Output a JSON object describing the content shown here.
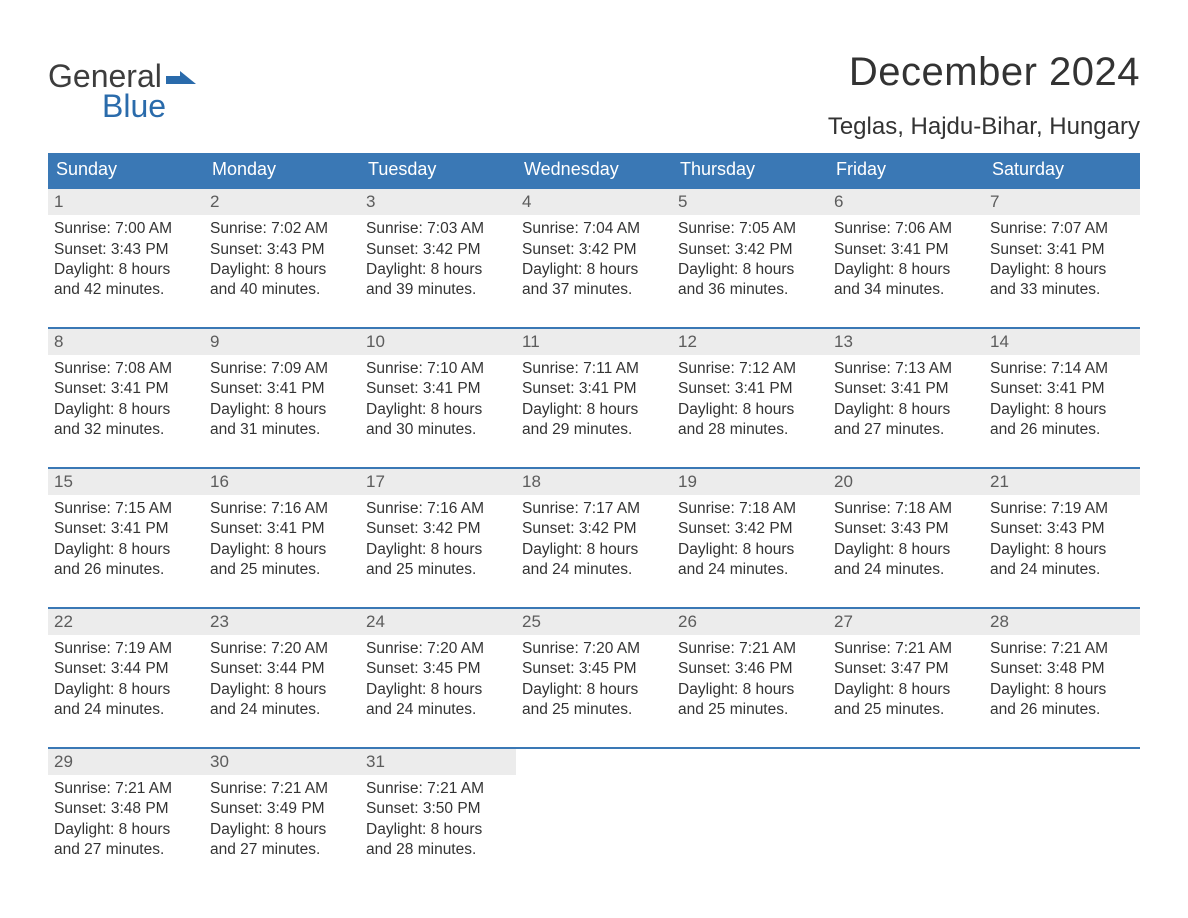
{
  "logo": {
    "word1": "General",
    "word2": "Blue"
  },
  "title": "December 2024",
  "location": "Teglas, Hajdu-Bihar, Hungary",
  "colors": {
    "header_bg": "#3a78b5",
    "header_text": "#ffffff",
    "daynum_bg": "#ececec",
    "daynum_text": "#5c5c5c",
    "body_text": "#333333",
    "logo_gray": "#3d3d3d",
    "logo_blue": "#2a6bab",
    "week_divider": "#3a78b5",
    "background": "#ffffff"
  },
  "day_headers": [
    "Sunday",
    "Monday",
    "Tuesday",
    "Wednesday",
    "Thursday",
    "Friday",
    "Saturday"
  ],
  "weeks": [
    [
      {
        "n": "1",
        "sunrise": "7:00 AM",
        "sunset": "3:43 PM",
        "dl1": "Daylight: 8 hours",
        "dl2": "and 42 minutes."
      },
      {
        "n": "2",
        "sunrise": "7:02 AM",
        "sunset": "3:43 PM",
        "dl1": "Daylight: 8 hours",
        "dl2": "and 40 minutes."
      },
      {
        "n": "3",
        "sunrise": "7:03 AM",
        "sunset": "3:42 PM",
        "dl1": "Daylight: 8 hours",
        "dl2": "and 39 minutes."
      },
      {
        "n": "4",
        "sunrise": "7:04 AM",
        "sunset": "3:42 PM",
        "dl1": "Daylight: 8 hours",
        "dl2": "and 37 minutes."
      },
      {
        "n": "5",
        "sunrise": "7:05 AM",
        "sunset": "3:42 PM",
        "dl1": "Daylight: 8 hours",
        "dl2": "and 36 minutes."
      },
      {
        "n": "6",
        "sunrise": "7:06 AM",
        "sunset": "3:41 PM",
        "dl1": "Daylight: 8 hours",
        "dl2": "and 34 minutes."
      },
      {
        "n": "7",
        "sunrise": "7:07 AM",
        "sunset": "3:41 PM",
        "dl1": "Daylight: 8 hours",
        "dl2": "and 33 minutes."
      }
    ],
    [
      {
        "n": "8",
        "sunrise": "7:08 AM",
        "sunset": "3:41 PM",
        "dl1": "Daylight: 8 hours",
        "dl2": "and 32 minutes."
      },
      {
        "n": "9",
        "sunrise": "7:09 AM",
        "sunset": "3:41 PM",
        "dl1": "Daylight: 8 hours",
        "dl2": "and 31 minutes."
      },
      {
        "n": "10",
        "sunrise": "7:10 AM",
        "sunset": "3:41 PM",
        "dl1": "Daylight: 8 hours",
        "dl2": "and 30 minutes."
      },
      {
        "n": "11",
        "sunrise": "7:11 AM",
        "sunset": "3:41 PM",
        "dl1": "Daylight: 8 hours",
        "dl2": "and 29 minutes."
      },
      {
        "n": "12",
        "sunrise": "7:12 AM",
        "sunset": "3:41 PM",
        "dl1": "Daylight: 8 hours",
        "dl2": "and 28 minutes."
      },
      {
        "n": "13",
        "sunrise": "7:13 AM",
        "sunset": "3:41 PM",
        "dl1": "Daylight: 8 hours",
        "dl2": "and 27 minutes."
      },
      {
        "n": "14",
        "sunrise": "7:14 AM",
        "sunset": "3:41 PM",
        "dl1": "Daylight: 8 hours",
        "dl2": "and 26 minutes."
      }
    ],
    [
      {
        "n": "15",
        "sunrise": "7:15 AM",
        "sunset": "3:41 PM",
        "dl1": "Daylight: 8 hours",
        "dl2": "and 26 minutes."
      },
      {
        "n": "16",
        "sunrise": "7:16 AM",
        "sunset": "3:41 PM",
        "dl1": "Daylight: 8 hours",
        "dl2": "and 25 minutes."
      },
      {
        "n": "17",
        "sunrise": "7:16 AM",
        "sunset": "3:42 PM",
        "dl1": "Daylight: 8 hours",
        "dl2": "and 25 minutes."
      },
      {
        "n": "18",
        "sunrise": "7:17 AM",
        "sunset": "3:42 PM",
        "dl1": "Daylight: 8 hours",
        "dl2": "and 24 minutes."
      },
      {
        "n": "19",
        "sunrise": "7:18 AM",
        "sunset": "3:42 PM",
        "dl1": "Daylight: 8 hours",
        "dl2": "and 24 minutes."
      },
      {
        "n": "20",
        "sunrise": "7:18 AM",
        "sunset": "3:43 PM",
        "dl1": "Daylight: 8 hours",
        "dl2": "and 24 minutes."
      },
      {
        "n": "21",
        "sunrise": "7:19 AM",
        "sunset": "3:43 PM",
        "dl1": "Daylight: 8 hours",
        "dl2": "and 24 minutes."
      }
    ],
    [
      {
        "n": "22",
        "sunrise": "7:19 AM",
        "sunset": "3:44 PM",
        "dl1": "Daylight: 8 hours",
        "dl2": "and 24 minutes."
      },
      {
        "n": "23",
        "sunrise": "7:20 AM",
        "sunset": "3:44 PM",
        "dl1": "Daylight: 8 hours",
        "dl2": "and 24 minutes."
      },
      {
        "n": "24",
        "sunrise": "7:20 AM",
        "sunset": "3:45 PM",
        "dl1": "Daylight: 8 hours",
        "dl2": "and 24 minutes."
      },
      {
        "n": "25",
        "sunrise": "7:20 AM",
        "sunset": "3:45 PM",
        "dl1": "Daylight: 8 hours",
        "dl2": "and 25 minutes."
      },
      {
        "n": "26",
        "sunrise": "7:21 AM",
        "sunset": "3:46 PM",
        "dl1": "Daylight: 8 hours",
        "dl2": "and 25 minutes."
      },
      {
        "n": "27",
        "sunrise": "7:21 AM",
        "sunset": "3:47 PM",
        "dl1": "Daylight: 8 hours",
        "dl2": "and 25 minutes."
      },
      {
        "n": "28",
        "sunrise": "7:21 AM",
        "sunset": "3:48 PM",
        "dl1": "Daylight: 8 hours",
        "dl2": "and 26 minutes."
      }
    ],
    [
      {
        "n": "29",
        "sunrise": "7:21 AM",
        "sunset": "3:48 PM",
        "dl1": "Daylight: 8 hours",
        "dl2": "and 27 minutes."
      },
      {
        "n": "30",
        "sunrise": "7:21 AM",
        "sunset": "3:49 PM",
        "dl1": "Daylight: 8 hours",
        "dl2": "and 27 minutes."
      },
      {
        "n": "31",
        "sunrise": "7:21 AM",
        "sunset": "3:50 PM",
        "dl1": "Daylight: 8 hours",
        "dl2": "and 28 minutes."
      },
      {
        "empty": true
      },
      {
        "empty": true
      },
      {
        "empty": true
      },
      {
        "empty": true
      }
    ]
  ],
  "labels": {
    "sunrise_prefix": "Sunrise: ",
    "sunset_prefix": "Sunset: "
  }
}
